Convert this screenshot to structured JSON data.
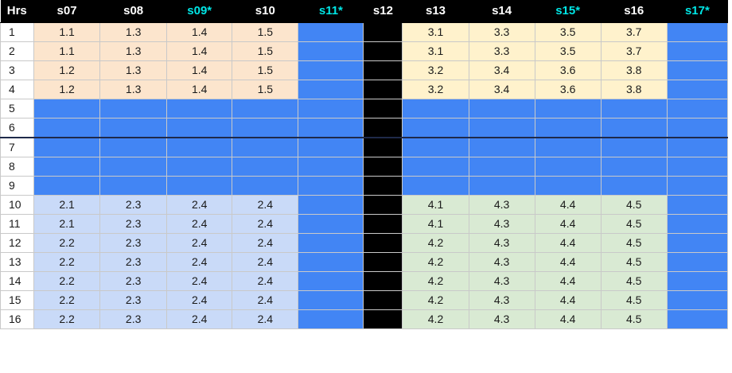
{
  "headers": [
    {
      "label": "Hrs",
      "starred": false
    },
    {
      "label": "s07",
      "starred": false
    },
    {
      "label": "s08",
      "starred": false
    },
    {
      "label": "s09*",
      "starred": true
    },
    {
      "label": "s10",
      "starred": false
    },
    {
      "label": "s11*",
      "starred": true
    },
    {
      "label": "s12",
      "starred": false
    },
    {
      "label": "s13",
      "starred": false
    },
    {
      "label": "s14",
      "starred": false
    },
    {
      "label": "s15*",
      "starred": true
    },
    {
      "label": "s16",
      "starred": false
    },
    {
      "label": "s17*",
      "starred": true
    }
  ],
  "rows": [
    {
      "hrs": "1",
      "left": [
        "1.1",
        "1.3",
        "1.4",
        "1.5"
      ],
      "right": [
        "3.1",
        "3.3",
        "3.5",
        "3.7"
      ]
    },
    {
      "hrs": "2",
      "left": [
        "1.1",
        "1.3",
        "1.4",
        "1.5"
      ],
      "right": [
        "3.1",
        "3.3",
        "3.5",
        "3.7"
      ]
    },
    {
      "hrs": "3",
      "left": [
        "1.2",
        "1.3",
        "1.4",
        "1.5"
      ],
      "right": [
        "3.2",
        "3.4",
        "3.6",
        "3.8"
      ]
    },
    {
      "hrs": "4",
      "left": [
        "1.2",
        "1.3",
        "1.4",
        "1.5"
      ],
      "right": [
        "3.2",
        "3.4",
        "3.6",
        "3.8"
      ]
    },
    {
      "hrs": "5",
      "left": [
        "",
        "",
        "",
        ""
      ],
      "right": [
        "",
        "",
        "",
        ""
      ]
    },
    {
      "hrs": "6",
      "left": [
        "",
        "",
        "",
        ""
      ],
      "right": [
        "",
        "",
        "",
        ""
      ]
    },
    {
      "hrs": "7",
      "left": [
        "",
        "",
        "",
        ""
      ],
      "right": [
        "",
        "",
        "",
        ""
      ]
    },
    {
      "hrs": "8",
      "left": [
        "",
        "",
        "",
        ""
      ],
      "right": [
        "",
        "",
        "",
        ""
      ]
    },
    {
      "hrs": "9",
      "left": [
        "",
        "",
        "",
        ""
      ],
      "right": [
        "",
        "",
        "",
        ""
      ]
    },
    {
      "hrs": "10",
      "left": [
        "2.1",
        "2.3",
        "2.4",
        "2.4"
      ],
      "right": [
        "4.1",
        "4.3",
        "4.4",
        "4.5"
      ]
    },
    {
      "hrs": "11",
      "left": [
        "2.1",
        "2.3",
        "2.4",
        "2.4"
      ],
      "right": [
        "4.1",
        "4.3",
        "4.4",
        "4.5"
      ]
    },
    {
      "hrs": "12",
      "left": [
        "2.2",
        "2.3",
        "2.4",
        "2.4"
      ],
      "right": [
        "4.2",
        "4.3",
        "4.4",
        "4.5"
      ]
    },
    {
      "hrs": "13",
      "left": [
        "2.2",
        "2.3",
        "2.4",
        "2.4"
      ],
      "right": [
        "4.2",
        "4.3",
        "4.4",
        "4.5"
      ]
    },
    {
      "hrs": "14",
      "left": [
        "2.2",
        "2.3",
        "2.4",
        "2.4"
      ],
      "right": [
        "4.2",
        "4.3",
        "4.4",
        "4.5"
      ]
    },
    {
      "hrs": "15",
      "left": [
        "2.2",
        "2.3",
        "2.4",
        "2.4"
      ],
      "right": [
        "4.2",
        "4.3",
        "4.4",
        "4.5"
      ]
    },
    {
      "hrs": "16",
      "left": [
        "2.2",
        "2.3",
        "2.4",
        "2.4"
      ],
      "right": [
        "4.2",
        "4.3",
        "4.4",
        "4.5"
      ]
    }
  ],
  "colors": {
    "header_bg": "#000000",
    "header_text": "#ffffff",
    "starred_header_text": "#00e5e5",
    "block_top_left": "#fce5cd",
    "block_top_right": "#fff2cc",
    "block_bottom_left": "#c9daf8",
    "block_bottom_right": "#d9ead3",
    "highlight_blue": "#4285f4",
    "spacer_black": "#000000"
  }
}
